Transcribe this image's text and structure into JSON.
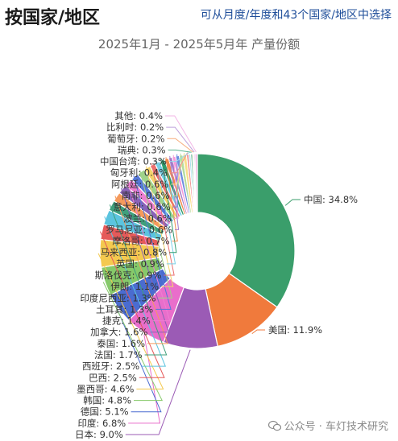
{
  "header": {
    "title": "按国家/地区",
    "selector_text": "可从月度/年度和43个国家/地区中选择",
    "subtitle": "2025年1月 - 2025年5月年 产量份额"
  },
  "watermark": {
    "text": "公众号 · 车灯技术研究",
    "icon": "wechat-icon"
  },
  "chart_data": {
    "type": "pie",
    "variant": "donut",
    "title": "2025年1月 - 2025年5月年 产量份额",
    "slices": [
      {
        "name": "中国",
        "value": 34.8,
        "label": "中国: 34.8%",
        "color": "#3a9e6b"
      },
      {
        "name": "美国",
        "value": 11.9,
        "label": "美国: 11.9%",
        "color": "#f07a3c"
      },
      {
        "name": "日本",
        "value": 9.0,
        "label": "日本: 9.0%",
        "color": "#9b5bb5"
      },
      {
        "name": "印度",
        "value": 6.8,
        "label": "印度: 6.8%",
        "color": "#e96ecb"
      },
      {
        "name": "德国",
        "value": 5.1,
        "label": "德国: 5.1%",
        "color": "#4a6cd0"
      },
      {
        "name": "韩国",
        "value": 4.8,
        "label": "韩国: 4.8%",
        "color": "#86c96a"
      },
      {
        "name": "墨西哥",
        "value": 4.6,
        "label": "墨西哥: 4.6%",
        "color": "#f4c94f"
      },
      {
        "name": "巴西",
        "value": 2.5,
        "label": "巴西: 2.5%",
        "color": "#e55a5a"
      },
      {
        "name": "西班牙",
        "value": 2.5,
        "label": "西班牙: 2.5%",
        "color": "#5bc4df"
      },
      {
        "name": "法国",
        "value": 1.7,
        "label": "法国: 1.7%",
        "color": "#3f9f7b"
      },
      {
        "name": "泰国",
        "value": 1.6,
        "label": "泰国: 1.6%",
        "color": "#f59a5c"
      },
      {
        "name": "加拿大",
        "value": 1.6,
        "label": "加拿大: 1.6%",
        "color": "#8a63b8"
      },
      {
        "name": "捷克",
        "value": 1.4,
        "label": "捷克: 1.4%",
        "color": "#ee7fd2"
      },
      {
        "name": "土耳其",
        "value": 1.3,
        "label": "土耳其: 1.3%",
        "color": "#5678d8"
      },
      {
        "name": "印度尼西亚",
        "value": 1.3,
        "label": "印度尼西亚: 1.3%",
        "color": "#9fd38b"
      },
      {
        "name": "伊朗",
        "value": 1.1,
        "label": "伊朗: 1.1%",
        "color": "#f3d36b"
      },
      {
        "name": "斯洛伐克",
        "value": 0.9,
        "label": "斯洛伐克: 0.9%",
        "color": "#ea6f6f"
      },
      {
        "name": "英国",
        "value": 0.9,
        "label": "英国: 0.9%",
        "color": "#78cfe6"
      },
      {
        "name": "马来西亚",
        "value": 0.8,
        "label": "马来西亚: 0.8%",
        "color": "#2f9b6c"
      },
      {
        "name": "摩洛哥",
        "value": 0.7,
        "label": "摩洛哥: 0.7%",
        "color": "#f38a4c"
      },
      {
        "name": "罗马尼亚",
        "value": 0.6,
        "label": "罗马尼亚: 0.6%",
        "color": "#a37bc9"
      },
      {
        "name": "波兰",
        "value": 0.6,
        "label": "波兰: 0.6%",
        "color": "#f59bd9"
      },
      {
        "name": "意大利",
        "value": 0.6,
        "label": "意大利: 0.6%",
        "color": "#6d8de0"
      },
      {
        "name": "南非",
        "value": 0.6,
        "label": "南非: 0.6%",
        "color": "#b4dc9e"
      },
      {
        "name": "阿根廷",
        "value": 0.6,
        "label": "阿根廷: 0.6%",
        "color": "#f7de8a"
      },
      {
        "name": "匈牙利",
        "value": 0.4,
        "label": "匈牙利: 0.4%",
        "color": "#f08a8a"
      },
      {
        "name": "中国台湾",
        "value": 0.3,
        "label": "中国台湾: 0.3%",
        "color": "#97d9ec"
      },
      {
        "name": "瑞典",
        "value": 0.3,
        "label": "瑞典: 0.3%",
        "color": "#57b38c"
      },
      {
        "name": "葡萄牙",
        "value": 0.2,
        "label": "葡萄牙: 0.2%",
        "color": "#f7ad7d"
      },
      {
        "name": "比利时",
        "value": 0.2,
        "label": "比利时: 0.2%",
        "color": "#bfa2dc"
      },
      {
        "name": "其他",
        "value": 0.4,
        "label": "其他: 0.4%",
        "color": "#f3b6e6"
      }
    ]
  }
}
